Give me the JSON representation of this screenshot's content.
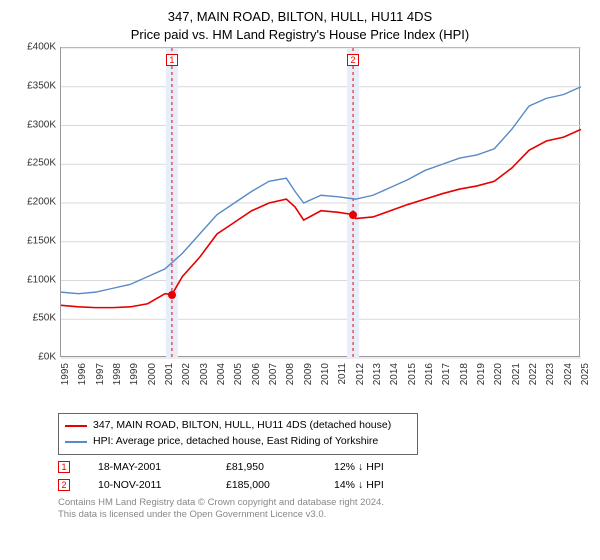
{
  "title_line1": "347, MAIN ROAD, BILTON, HULL, HU11 4DS",
  "title_line2": "Price paid vs. HM Land Registry's House Price Index (HPI)",
  "chart": {
    "type": "line",
    "ylim": [
      0,
      400000
    ],
    "ytick_step": 50000,
    "y_ticks": [
      "£0K",
      "£50K",
      "£100K",
      "£150K",
      "£200K",
      "£250K",
      "£300K",
      "£350K",
      "£400K"
    ],
    "x_years": [
      1995,
      1996,
      1997,
      1998,
      1999,
      2000,
      2001,
      2002,
      2003,
      2004,
      2005,
      2006,
      2007,
      2008,
      2009,
      2010,
      2011,
      2012,
      2013,
      2014,
      2015,
      2016,
      2017,
      2018,
      2019,
      2020,
      2021,
      2022,
      2023,
      2024,
      2025
    ],
    "background_color": "#ffffff",
    "grid_color": "#d9d9d9",
    "box_border": "#999999",
    "series": {
      "property": {
        "color": "#e60000",
        "width": 1.6,
        "points": [
          [
            1995,
            68000
          ],
          [
            1996,
            66000
          ],
          [
            1997,
            65000
          ],
          [
            1998,
            65000
          ],
          [
            1999,
            66000
          ],
          [
            2000,
            70000
          ],
          [
            2001,
            83000
          ],
          [
            2001.4,
            81950
          ],
          [
            2002,
            105000
          ],
          [
            2003,
            130000
          ],
          [
            2004,
            160000
          ],
          [
            2005,
            175000
          ],
          [
            2006,
            190000
          ],
          [
            2007,
            200000
          ],
          [
            2008,
            205000
          ],
          [
            2008.5,
            195000
          ],
          [
            2009,
            178000
          ],
          [
            2010,
            190000
          ],
          [
            2011,
            188000
          ],
          [
            2011.85,
            185000
          ],
          [
            2012,
            180000
          ],
          [
            2013,
            182000
          ],
          [
            2014,
            190000
          ],
          [
            2015,
            198000
          ],
          [
            2016,
            205000
          ],
          [
            2017,
            212000
          ],
          [
            2018,
            218000
          ],
          [
            2019,
            222000
          ],
          [
            2020,
            228000
          ],
          [
            2021,
            245000
          ],
          [
            2022,
            268000
          ],
          [
            2023,
            280000
          ],
          [
            2024,
            285000
          ],
          [
            2025,
            295000
          ]
        ]
      },
      "hpi": {
        "color": "#5a8ac6",
        "width": 1.4,
        "points": [
          [
            1995,
            85000
          ],
          [
            1996,
            83000
          ],
          [
            1997,
            85000
          ],
          [
            1998,
            90000
          ],
          [
            1999,
            95000
          ],
          [
            2000,
            105000
          ],
          [
            2001,
            115000
          ],
          [
            2002,
            135000
          ],
          [
            2003,
            160000
          ],
          [
            2004,
            185000
          ],
          [
            2005,
            200000
          ],
          [
            2006,
            215000
          ],
          [
            2007,
            228000
          ],
          [
            2008,
            232000
          ],
          [
            2008.5,
            215000
          ],
          [
            2009,
            200000
          ],
          [
            2010,
            210000
          ],
          [
            2011,
            208000
          ],
          [
            2012,
            205000
          ],
          [
            2013,
            210000
          ],
          [
            2014,
            220000
          ],
          [
            2015,
            230000
          ],
          [
            2016,
            242000
          ],
          [
            2017,
            250000
          ],
          [
            2018,
            258000
          ],
          [
            2019,
            262000
          ],
          [
            2020,
            270000
          ],
          [
            2021,
            295000
          ],
          [
            2022,
            325000
          ],
          [
            2023,
            335000
          ],
          [
            2024,
            340000
          ],
          [
            2025,
            350000
          ]
        ]
      }
    },
    "sale_markers": [
      {
        "n": "1",
        "year": 2001.4,
        "price": 81950,
        "band_color": "#e8eef9",
        "line_color": "#e60000"
      },
      {
        "n": "2",
        "year": 2011.85,
        "price": 185000,
        "band_color": "#e8eef9",
        "line_color": "#e60000"
      }
    ]
  },
  "legend": {
    "property": "347, MAIN ROAD, BILTON, HULL, HU11 4DS (detached house)",
    "hpi": "HPI: Average price, detached house, East Riding of Yorkshire"
  },
  "sales": [
    {
      "n": "1",
      "date": "18-MAY-2001",
      "price": "£81,950",
      "hpi_diff": "12%",
      "arrow": "↓",
      "hpi_label": "HPI",
      "color": "#e60000"
    },
    {
      "n": "2",
      "date": "10-NOV-2011",
      "price": "£185,000",
      "hpi_diff": "14%",
      "arrow": "↓",
      "hpi_label": "HPI",
      "color": "#e60000"
    }
  ],
  "footnote_line1": "Contains HM Land Registry data © Crown copyright and database right 2024.",
  "footnote_line2": "This data is licensed under the Open Government Licence v3.0."
}
